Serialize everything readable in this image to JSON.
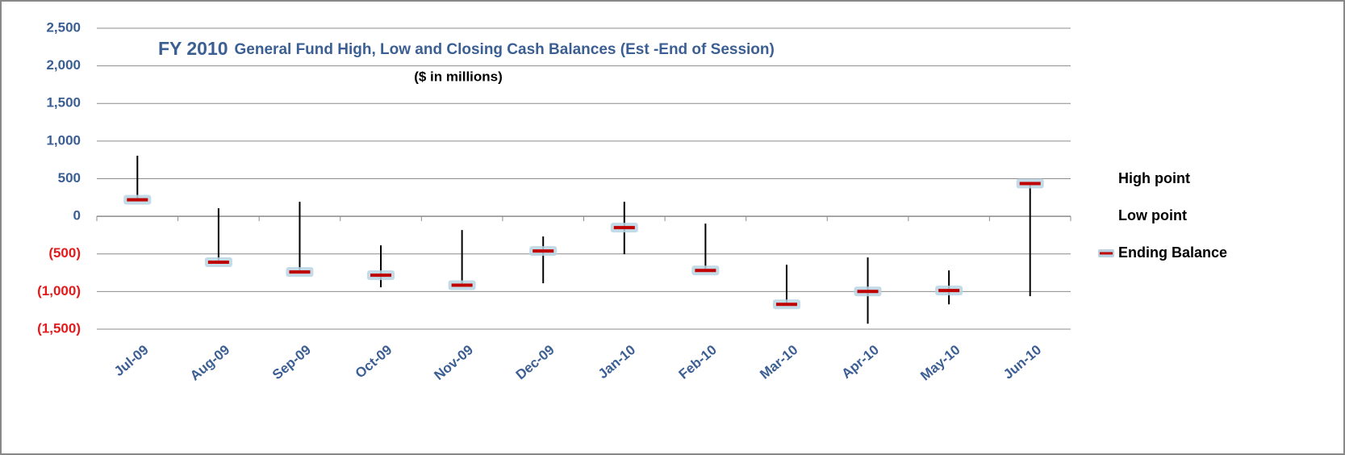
{
  "chart_data": {
    "type": "hlc",
    "title": "FY 2010",
    "subtitle": "General Fund High, Low and Closing Cash Balances (Est -End of Session)",
    "note": "($ in millions)",
    "categories": [
      "Jul-09",
      "Aug-09",
      "Sep-09",
      "Oct-09",
      "Nov-09",
      "Dec-09",
      "Jan-10",
      "Feb-10",
      "Mar-10",
      "Apr-10",
      "May-10",
      "Jun-10"
    ],
    "series": [
      {
        "name": "High point",
        "color": "#000000",
        "values": [
          805,
          107,
          193,
          -386,
          -182,
          -268,
          193,
          -97,
          -644,
          -547,
          -719,
          440
        ]
      },
      {
        "name": "Low point",
        "color": "#000000",
        "values": [
          200,
          -620,
          -750,
          -944,
          -922,
          -890,
          -504,
          -730,
          -1180,
          -1427,
          -1170,
          -1062
        ]
      },
      {
        "name": "Ending Balance",
        "color": "#c00000",
        "values": [
          220,
          -610,
          -740,
          -783,
          -915,
          -461,
          -150,
          -720,
          -1170,
          -998,
          -987,
          435
        ]
      }
    ],
    "ylim": [
      -1500,
      2500
    ],
    "yticks": [
      {
        "value": 2500,
        "label": "2,500"
      },
      {
        "value": 2000,
        "label": "2,000"
      },
      {
        "value": 1500,
        "label": "1,500"
      },
      {
        "value": 1000,
        "label": "1,000"
      },
      500,
      0,
      {
        "value": -500,
        "label": "(500)"
      },
      {
        "value": -1000,
        "label": "(1,000)"
      },
      {
        "value": -1500,
        "label": "(1,500)"
      }
    ],
    "grid": true,
    "tick_color": "#3b5f93",
    "negative_tick_color": "#e31a1c"
  }
}
